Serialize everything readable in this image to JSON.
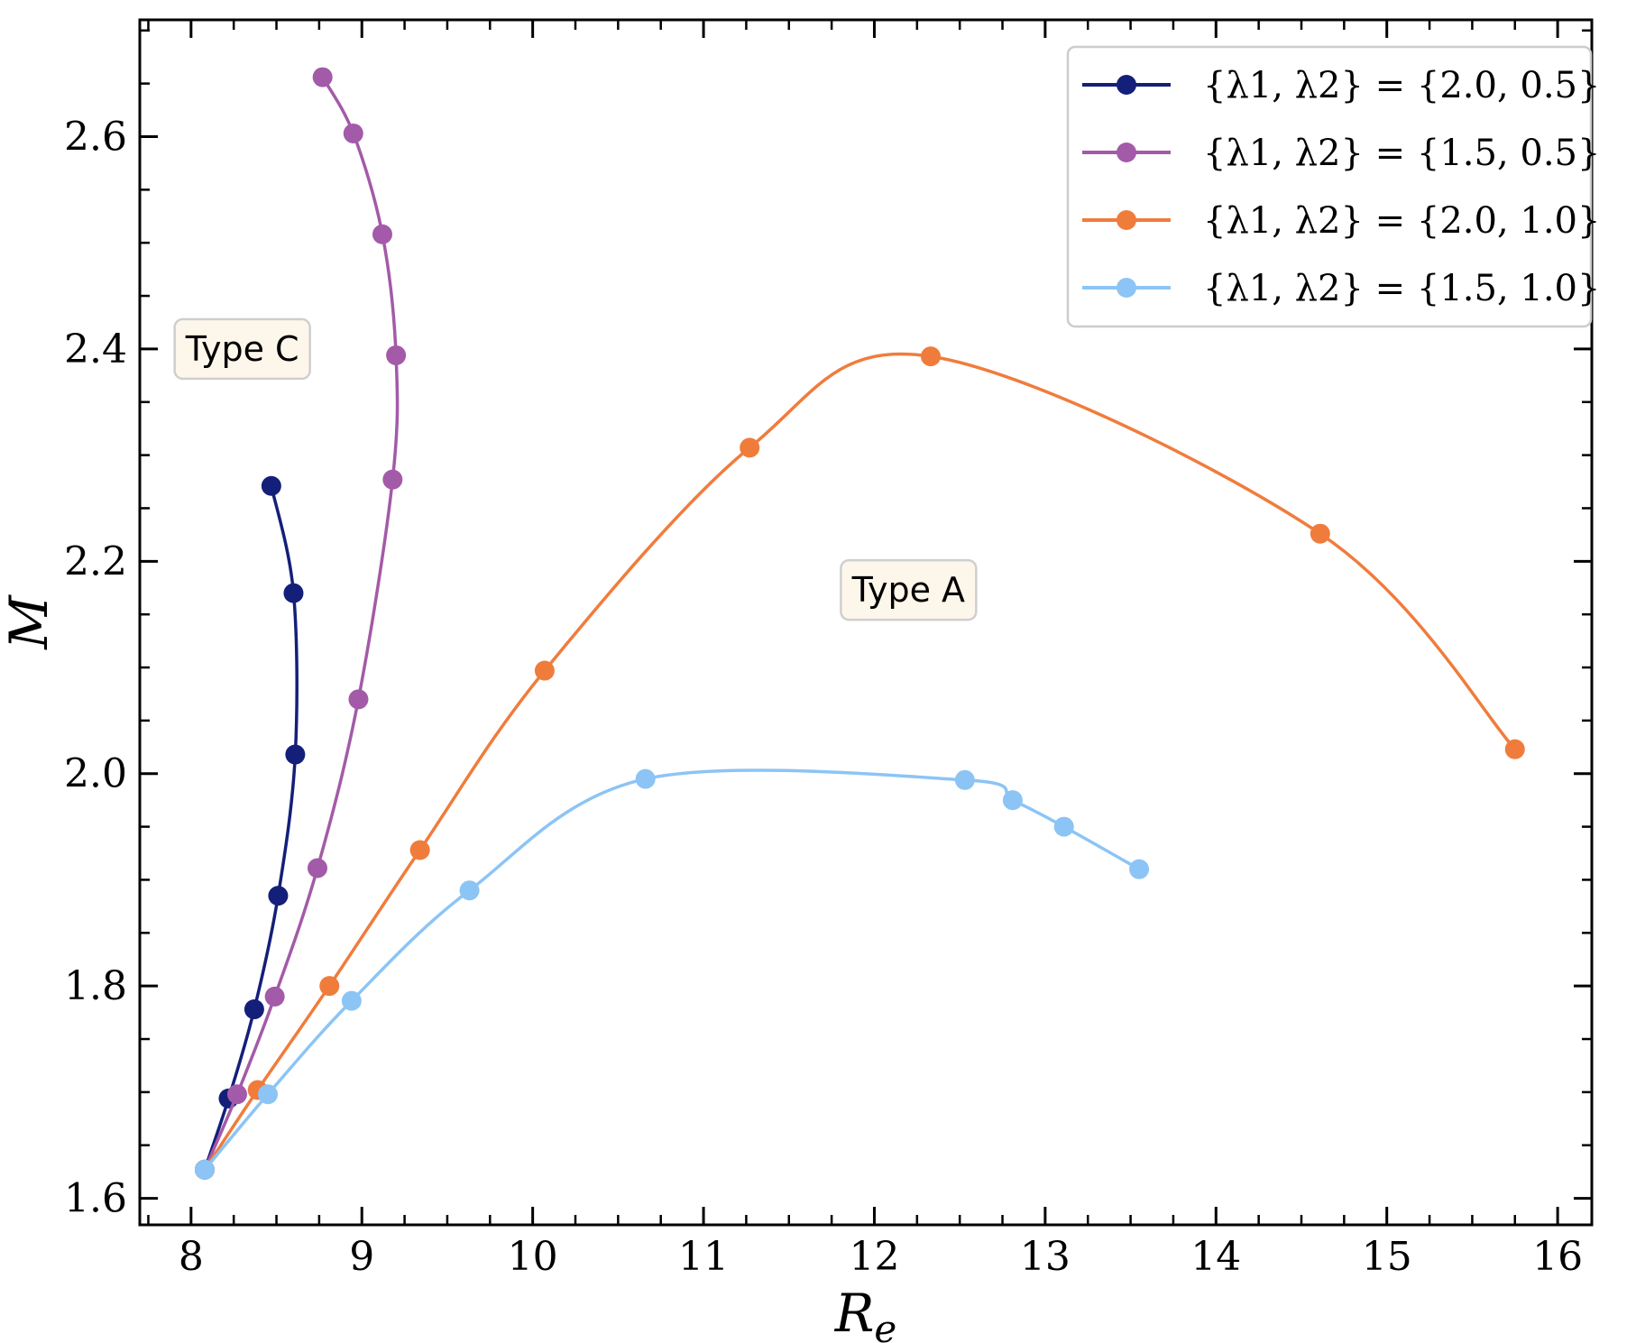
{
  "chart_data": {
    "type": "line",
    "xlabel_main": "R",
    "xlabel_sub": "e",
    "ylabel": "M",
    "xlim": [
      7.7,
      16.2
    ],
    "ylim": [
      1.575,
      2.71
    ],
    "x_ticks": [
      8,
      9,
      10,
      11,
      12,
      13,
      14,
      15,
      16
    ],
    "x_tick_labels": [
      "8",
      "9",
      "10",
      "11",
      "12",
      "13",
      "14",
      "15",
      "16"
    ],
    "y_ticks": [
      1.6,
      1.8,
      2.0,
      2.2,
      2.4,
      2.6
    ],
    "y_tick_labels": [
      "1.6",
      "1.8",
      "2.0",
      "2.2",
      "2.4",
      "2.6"
    ],
    "grid": false,
    "legend_position": "top-right",
    "series": [
      {
        "name": "{λ1, λ2} = {2.0, 0.5}",
        "color": "#141f7a",
        "points": [
          [
            8.08,
            1.627
          ],
          [
            8.22,
            1.694
          ],
          [
            8.37,
            1.778
          ],
          [
            8.51,
            1.885
          ],
          [
            8.61,
            2.018
          ],
          [
            8.6,
            2.17
          ],
          [
            8.47,
            2.271
          ]
        ]
      },
      {
        "name": "{λ1, λ2} = {1.5, 0.5}",
        "color": "#a35aa8",
        "points": [
          [
            8.08,
            1.627
          ],
          [
            8.27,
            1.698
          ],
          [
            8.49,
            1.79
          ],
          [
            8.74,
            1.911
          ],
          [
            8.98,
            2.07
          ],
          [
            9.18,
            2.277
          ],
          [
            9.2,
            2.394
          ],
          [
            9.12,
            2.508
          ],
          [
            8.95,
            2.603
          ],
          [
            8.77,
            2.656
          ]
        ]
      },
      {
        "name": "{λ1, λ2} = {2.0, 1.0}",
        "color": "#f07c3c",
        "points": [
          [
            8.08,
            1.627
          ],
          [
            8.39,
            1.702
          ],
          [
            8.81,
            1.8
          ],
          [
            9.34,
            1.928
          ],
          [
            10.07,
            2.097
          ],
          [
            11.27,
            2.307
          ],
          [
            12.33,
            2.393
          ],
          [
            14.61,
            2.226
          ],
          [
            15.75,
            2.023
          ]
        ]
      },
      {
        "name": "{λ1, λ2} = {1.5, 1.0}",
        "color": "#8cc4f5",
        "points": [
          [
            8.08,
            1.627
          ],
          [
            8.45,
            1.698
          ],
          [
            8.94,
            1.786
          ],
          [
            9.63,
            1.89
          ],
          [
            10.66,
            1.995
          ],
          [
            12.53,
            1.994
          ],
          [
            12.81,
            1.975
          ],
          [
            13.11,
            1.95
          ],
          [
            13.55,
            1.91
          ]
        ]
      }
    ],
    "legend_entries": [
      "{λ1, λ2} = {2.0, 0.5}",
      "{λ1, λ2} = {1.5, 0.5}",
      "{λ1, λ2} = {2.0, 1.0}",
      "{λ1, λ2} = {1.5, 1.0}"
    ],
    "annotations": [
      {
        "text": "Type C",
        "x": 8.3,
        "y": 2.4
      },
      {
        "text": "Type A",
        "x": 12.2,
        "y": 2.173
      }
    ]
  }
}
